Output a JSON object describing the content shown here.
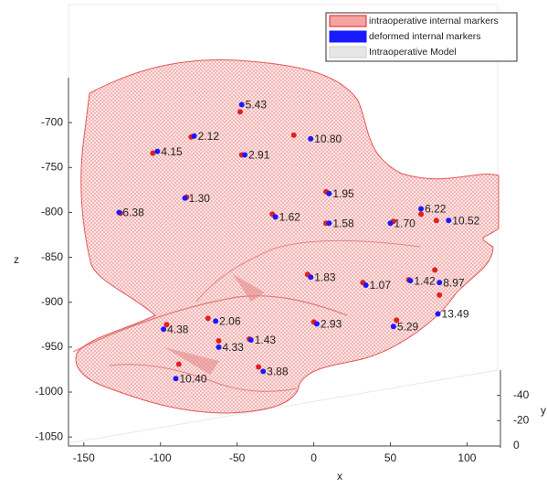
{
  "chart_data": {
    "type": "scatter3d",
    "xlabel": "x",
    "ylabel": "y",
    "zlabel": "z",
    "xlim": [
      -160,
      120
    ],
    "xticks": [
      -150,
      -100,
      -50,
      0,
      50,
      100
    ],
    "ylim": [
      0,
      -60
    ],
    "yticks": [
      -40,
      -20,
      0
    ],
    "zlim": [
      -1060,
      -650
    ],
    "zticks": [
      -700,
      -750,
      -800,
      -850,
      -900,
      -950,
      -1000,
      -1050
    ],
    "series": [
      {
        "name": "intraoperative internal markers",
        "color": "#e02020",
        "x": [
          -48,
          -80,
          -13,
          -105,
          -47,
          -83,
          8,
          -126,
          -27,
          70,
          8,
          52,
          80,
          -4,
          32,
          62,
          79,
          82,
          -69,
          0,
          54,
          -96,
          -42,
          -62,
          -36,
          -88
        ],
        "z": [
          -688,
          -716,
          -714,
          -734,
          -736,
          -783,
          -777,
          -801,
          -802,
          -802,
          -812,
          -810,
          -809,
          -869,
          -878,
          -875,
          -864,
          -892,
          -918,
          -922,
          -920,
          -925,
          -941,
          -943,
          -972,
          -969
        ]
      },
      {
        "name": "deformed internal markers",
        "color": "#1a1aff",
        "x": [
          -47,
          -78,
          -2,
          -102,
          -45,
          -84,
          10,
          -127,
          -25,
          70,
          10,
          50,
          88,
          -2,
          34,
          63,
          82,
          81,
          -64,
          2,
          52,
          -98,
          -41,
          -62,
          -33,
          -90
        ],
        "z": [
          -680,
          -715,
          -718,
          -732,
          -736,
          -784,
          -779,
          -800,
          -805,
          -796,
          -812,
          -812,
          -809,
          -872,
          -881,
          -876,
          -878,
          -913,
          -921,
          -924,
          -927,
          -930,
          -942,
          -950,
          -977,
          -985
        ],
        "labels": [
          "5.43",
          "2.12",
          "10.80",
          "4.15",
          "2.91",
          "1.30",
          "1.95",
          "6.38",
          "1.62",
          "6.22",
          "1.58",
          "1.70",
          "10.52",
          "1.83",
          "1.07",
          "1.42",
          "8.97",
          "13.49",
          "2.06",
          "2.93",
          "5.29",
          "4.38",
          "1.43",
          "4.33",
          "3.88",
          "10.40"
        ]
      }
    ],
    "model": {
      "name": "Intraoperative Model",
      "color": "#e6e6e6"
    },
    "legend": "top-right"
  }
}
